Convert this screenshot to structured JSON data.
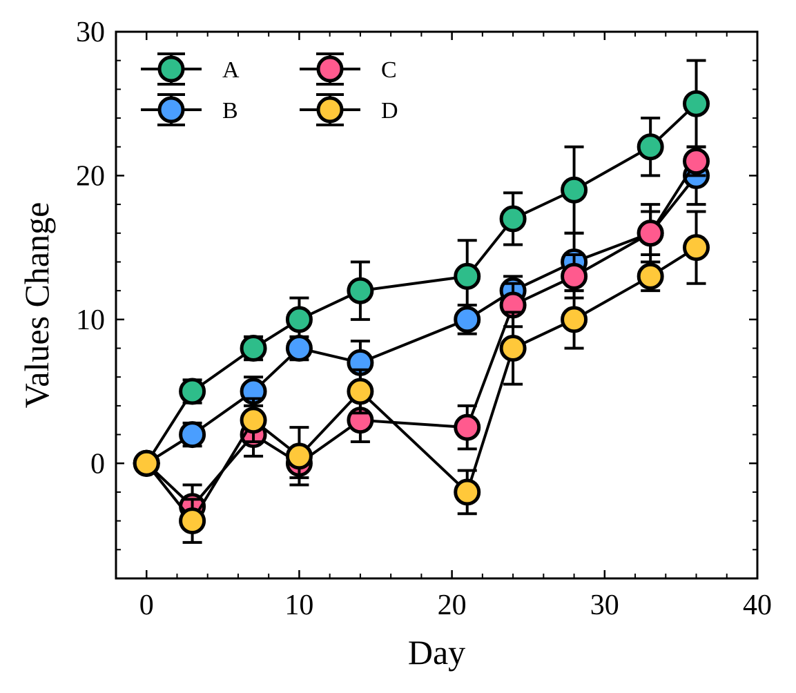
{
  "chart_data": {
    "type": "line",
    "title": "",
    "xlabel": "Day",
    "ylabel": "Values Change",
    "xlim": [
      -2,
      40
    ],
    "ylim": [
      -8,
      30
    ],
    "xticks": [
      0,
      10,
      20,
      30,
      40
    ],
    "yticks": [
      0,
      10,
      20,
      30
    ],
    "xtick_labels": [
      "0",
      "10",
      "20",
      "30",
      "40"
    ],
    "ytick_labels": [
      "0",
      "10",
      "20",
      "30"
    ],
    "x_minor_step": 2,
    "y_minor_step": 2,
    "grid": false,
    "legend_position": "top-left",
    "legend_columns": 2,
    "x": [
      0,
      3,
      7,
      10,
      14,
      21,
      24,
      28,
      33,
      36
    ],
    "series": [
      {
        "name": "A",
        "color": "#2EBD8A",
        "values": [
          0,
          5,
          8,
          10,
          12,
          13,
          17,
          19,
          22,
          25
        ],
        "errors": [
          0.5,
          0.8,
          0.8,
          1.5,
          2.0,
          2.5,
          1.8,
          3.0,
          2.0,
          3.0
        ]
      },
      {
        "name": "B",
        "color": "#4A9EFF",
        "values": [
          0,
          2,
          5,
          8,
          7,
          10,
          12,
          14,
          16,
          20
        ],
        "errors": [
          0.5,
          0.8,
          1.0,
          0.8,
          1.5,
          1.0,
          1.0,
          2.0,
          2.0,
          2.0
        ]
      },
      {
        "name": "C",
        "color": "#FF5A8E",
        "values": [
          0,
          -3,
          2,
          0,
          3,
          2.5,
          11,
          13,
          16,
          21
        ],
        "errors": [
          0.5,
          1.5,
          1.5,
          1.0,
          1.5,
          1.5,
          1.5,
          1.5,
          1.5,
          1.0
        ]
      },
      {
        "name": "D",
        "color": "#FFC83A",
        "values": [
          0,
          -4,
          3,
          0.5,
          5,
          -2,
          8,
          10,
          13,
          15
        ],
        "errors": [
          0.5,
          1.5,
          1.5,
          2.0,
          1.5,
          1.5,
          2.5,
          2.0,
          1.0,
          2.5
        ]
      }
    ]
  }
}
